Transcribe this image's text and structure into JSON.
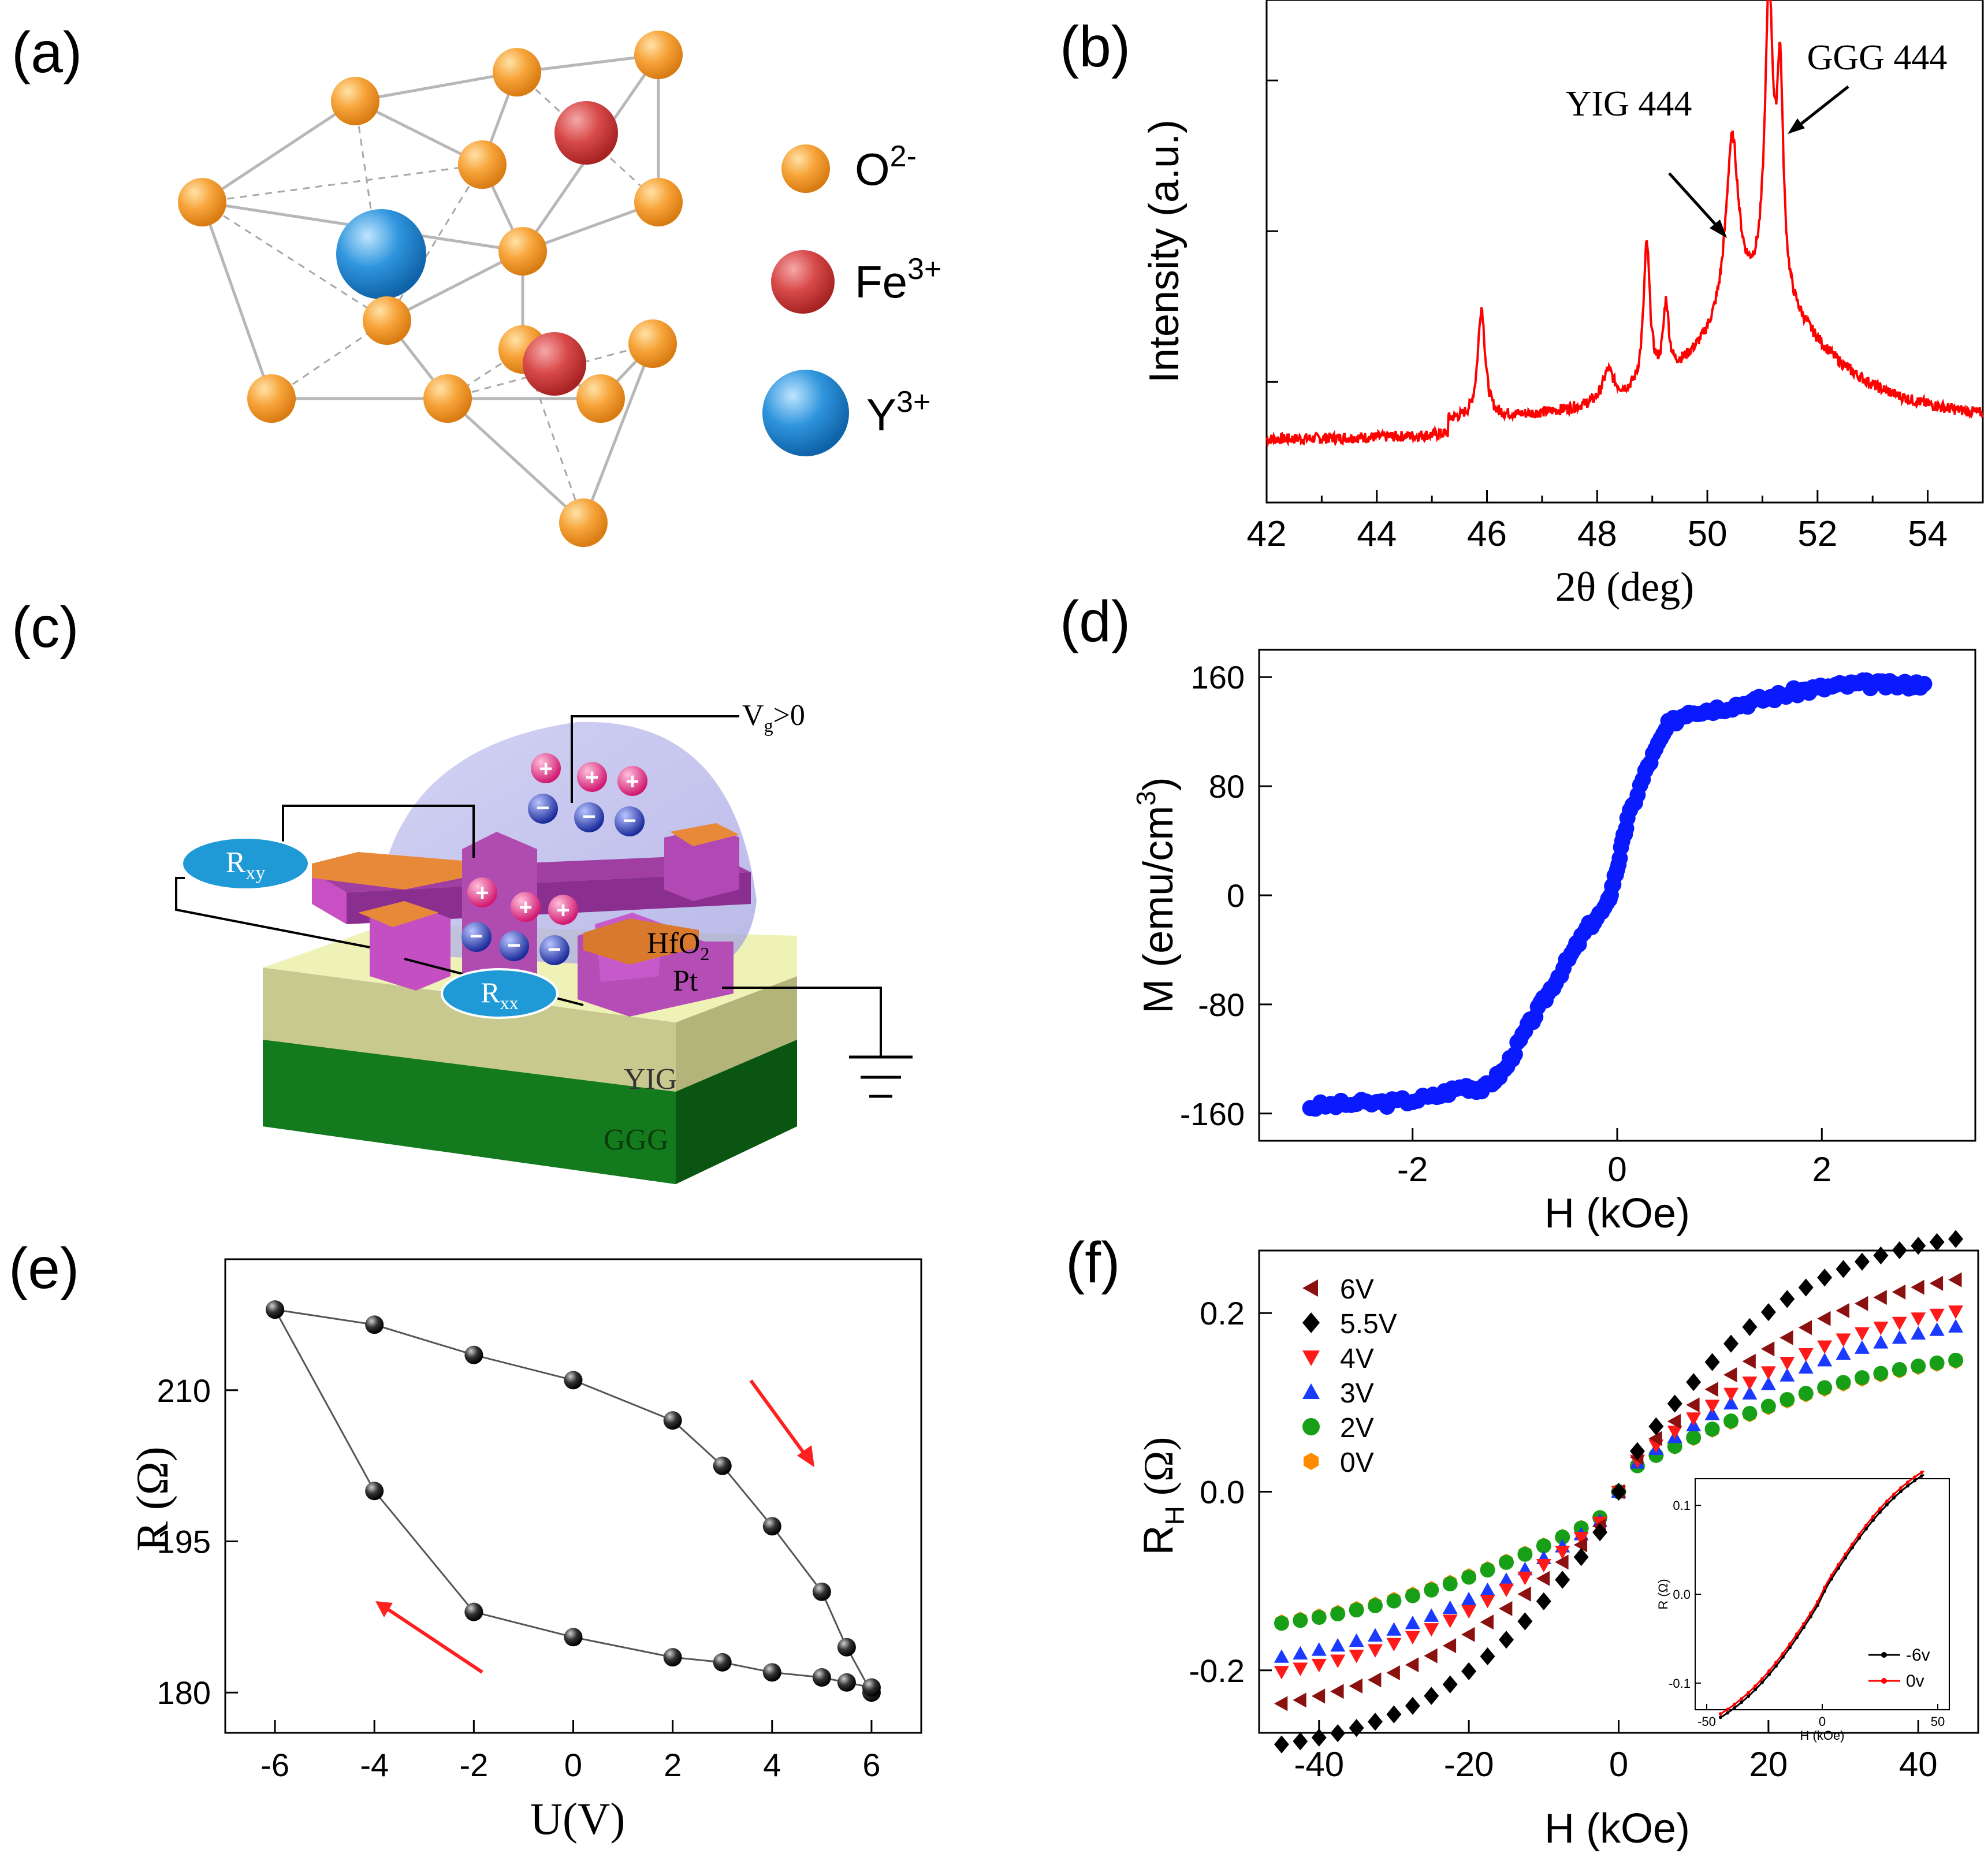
{
  "panels": {
    "a": {
      "tag": "(a)",
      "legend": [
        {
          "species": "O",
          "charge": "2-",
          "color": "#f59b2a"
        },
        {
          "species": "Fe",
          "charge": "3+",
          "color": "#cf4040"
        },
        {
          "species": "Y",
          "charge": "3+",
          "color": "#2a8fd6"
        }
      ]
    },
    "b": {
      "tag": "(b)"
    },
    "c": {
      "tag": "(c)",
      "labels": {
        "vg_main": "V",
        "vg_sub": "g",
        "vg_rest": ">0",
        "rxy_main": "R",
        "rxy_sub": "xy",
        "rxx_main": "R",
        "rxx_sub": "xx",
        "hfo_main": "HfO",
        "hfo_sub": "2",
        "pt": "Pt",
        "yig": "YIG",
        "ggg": "GGG"
      }
    },
    "d": {
      "tag": "(d)"
    },
    "e": {
      "tag": "(e)"
    },
    "f": {
      "tag": "(f)"
    }
  },
  "chart_data": [
    {
      "panel": "b",
      "type": "line",
      "title": "",
      "xlabel": "2θ (deg)",
      "ylabel": "Intensity (a.u.)",
      "xlim": [
        42,
        55
      ],
      "ylim": [
        0,
        100
      ],
      "xticks": [
        "42",
        "44",
        "46",
        "48",
        "50",
        "52",
        "54"
      ],
      "color": "#ff0000",
      "peaks": [
        {
          "x": 45.9,
          "height": 22,
          "width": 0.08
        },
        {
          "x": 48.2,
          "height": 6,
          "width": 0.12
        },
        {
          "x": 48.9,
          "height": 28,
          "width": 0.07
        },
        {
          "x": 49.25,
          "height": 14,
          "width": 0.06
        },
        {
          "x": 50.45,
          "height": 35,
          "width": 0.14
        },
        {
          "x": 51.12,
          "height": 58,
          "width": 0.09
        },
        {
          "x": 51.32,
          "height": 42,
          "width": 0.07
        }
      ],
      "baseline": 12,
      "broad_hump": {
        "center": 51.0,
        "height": 25,
        "width": 1.4
      },
      "annotations": [
        {
          "text": "YIG 444",
          "x": 50.45
        },
        {
          "text": "GGG 444",
          "x": 51.12
        }
      ]
    },
    {
      "panel": "d",
      "type": "scatter",
      "title": "",
      "xlabel": "H (kOe)",
      "ylabel_main": "M (emu/cm",
      "ylabel_sup": "3",
      "ylabel_end": ")",
      "xlim": [
        -3.5,
        3.5
      ],
      "ylim": [
        -180,
        180
      ],
      "xticks": [
        -2,
        0,
        2
      ],
      "yticks": [
        -160,
        -80,
        0,
        80,
        160
      ],
      "color": "#0a1aff",
      "x": [
        -3.0,
        -2.6,
        -2.2,
        -1.8,
        -1.5,
        -1.3,
        -1.1,
        -0.9,
        -0.7,
        -0.5,
        -0.3,
        -0.1,
        0.0,
        0.1,
        0.3,
        0.5,
        0.7,
        0.9,
        1.2,
        1.5,
        1.8,
        2.1,
        2.4,
        2.7,
        3.0
      ],
      "y": [
        -155,
        -153,
        -152,
        -148,
        -140,
        -142,
        -128,
        -100,
        -75,
        -50,
        -25,
        -8,
        20,
        55,
        95,
        125,
        135,
        136,
        140,
        145,
        150,
        153,
        155,
        154,
        155
      ]
    },
    {
      "panel": "e",
      "type": "line",
      "title": "",
      "xlabel": "U(V)",
      "ylabel": "R (Ω)",
      "xlim": [
        -7,
        7
      ],
      "ylim": [
        176,
        223
      ],
      "xticks": [
        -6,
        -4,
        -2,
        0,
        2,
        4,
        6
      ],
      "yticks": [
        180,
        195,
        210
      ],
      "color": "#000000",
      "upper_branch": {
        "x": [
          -6,
          -4,
          -2,
          0,
          2,
          3,
          4,
          5,
          5.5,
          6
        ],
        "y": [
          218,
          216.5,
          213.5,
          211,
          207,
          202.5,
          196.5,
          190,
          184.5,
          180
        ]
      },
      "lower_branch": {
        "x": [
          6,
          5.5,
          5,
          4,
          3,
          2,
          0,
          -2,
          -4,
          -6
        ],
        "y": [
          180.5,
          181,
          181.5,
          182,
          183,
          183.5,
          185.5,
          188,
          200,
          218
        ]
      }
    },
    {
      "panel": "f",
      "type": "scatter",
      "title": "",
      "xlabel": "H (kOe)",
      "ylabel_main": "R",
      "ylabel_sub": "H",
      "ylabel_end": " (Ω)",
      "xlim": [
        -48,
        48
      ],
      "ylim": [
        -0.27,
        0.27
      ],
      "xticks": [
        -40,
        -20,
        0,
        20,
        40
      ],
      "yticks": [
        "-0.2",
        "0.0",
        "0.2"
      ],
      "series": [
        {
          "name": "6V",
          "color": "#8b1010",
          "marker": "tri-left",
          "amp": 0.24,
          "k": 30
        },
        {
          "name": "5.5V",
          "color": "#000000",
          "marker": "diamond",
          "amp": 0.28,
          "k": 26
        },
        {
          "name": "4V",
          "color": "#ff1a1a",
          "marker": "tri-down",
          "amp": 0.205,
          "k": 32
        },
        {
          "name": "3V",
          "color": "#1a3aff",
          "marker": "tri-up",
          "amp": 0.19,
          "k": 34
        },
        {
          "name": "2V",
          "color": "#17a017",
          "marker": "circle",
          "amp": 0.15,
          "k": 36
        },
        {
          "name": "0V",
          "color": "#ff8c00",
          "marker": "hexagon",
          "amp": 0.15,
          "k": 37
        }
      ],
      "inset": {
        "xlabel": "H (kOe)",
        "ylabel": "R (Ω)",
        "xlim": [
          -55,
          55
        ],
        "ylim": [
          -0.13,
          0.13
        ],
        "xticks": [
          "-50",
          "0",
          "50"
        ],
        "yticks": [
          "-0.1",
          "0.0",
          "0.1"
        ],
        "series": [
          {
            "name": "-6v",
            "color": "#000000"
          },
          {
            "name": "0v",
            "color": "#ff0000"
          }
        ]
      }
    }
  ]
}
